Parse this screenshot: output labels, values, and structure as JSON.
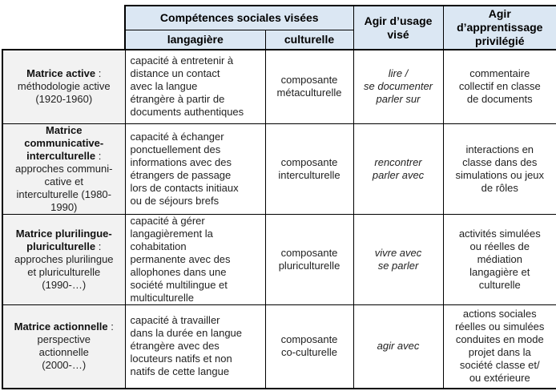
{
  "table": {
    "header": {
      "competences_group": "Compétences sociales visées",
      "langagiere": "langagière",
      "culturelle": "culturelle",
      "agir_usage": "Agir d’usage\nvisé",
      "agir_apprentissage": "Agir\nd’apprentissage\nprivilégié"
    },
    "rows": [
      {
        "matrice": "Matrice active",
        "matrice_suite": " :\nméthodologie active\n(1920-1960)",
        "langagiere": "capacité à entretenir à\ndistance un contact\navec la langue\nétrangère à partir de\ndocuments authentiques",
        "culturelle": "composante\nmétaculturelle",
        "agir_usage": "lire /\nse documenter\nparler sur",
        "agir_apprentissage": "commentaire\ncollectif en classe\nde documents"
      },
      {
        "matrice": "Matrice\ncommunicative-\ninterculturelle",
        "matrice_suite": " :\napproches communi-\ncative et\ninterculturelle (1980-\n1990)",
        "langagiere": "capacité à échanger\nponctuellement des\ninformations avec des\nétrangers de passage\nlors de contacts initiaux\nou de séjours brefs",
        "culturelle": "composante\ninterculturelle",
        "agir_usage": "rencontrer\nparler avec",
        "agir_apprentissage": "interactions en\nclasse dans des\nsimulations ou jeux\nde rôles"
      },
      {
        "matrice": "Matrice plurilingue-\npluriculturelle",
        "matrice_suite": " :\napproches plurilingue\net pluriculturelle\n(1990-…)",
        "langagiere": "capacité à gérer\nlangagièrement la\ncohabitation\npermanente avec des\nallophones dans une\nsociété multilingue et\nmulticulturelle",
        "culturelle": "composante\npluriculturelle",
        "agir_usage": "vivre avec\nse parler",
        "agir_apprentissage": "activités simulées\nou réelles de\nmédiation\nlangagière et\nculturelle"
      },
      {
        "matrice": "Matrice actionnelle",
        "matrice_suite": " :\nperspective\nactionnelle\n(2000-…)",
        "langagiere": "capacité à travailler\ndans la durée en langue\nétrangère avec des\nlocuteurs natifs et non\nnatifs de cette langue",
        "culturelle": "composante\nco-culturelle",
        "agir_usage": "agir avec",
        "agir_apprentissage": "actions sociales\nréelles ou simulées\nconduites en mode\nprojet dans la\nsociété classe et/\nou extérieure"
      }
    ]
  },
  "colors": {
    "header_bg": "#dbe7f3",
    "row_header_bg": "#f2f2f2",
    "border": "#000000"
  }
}
